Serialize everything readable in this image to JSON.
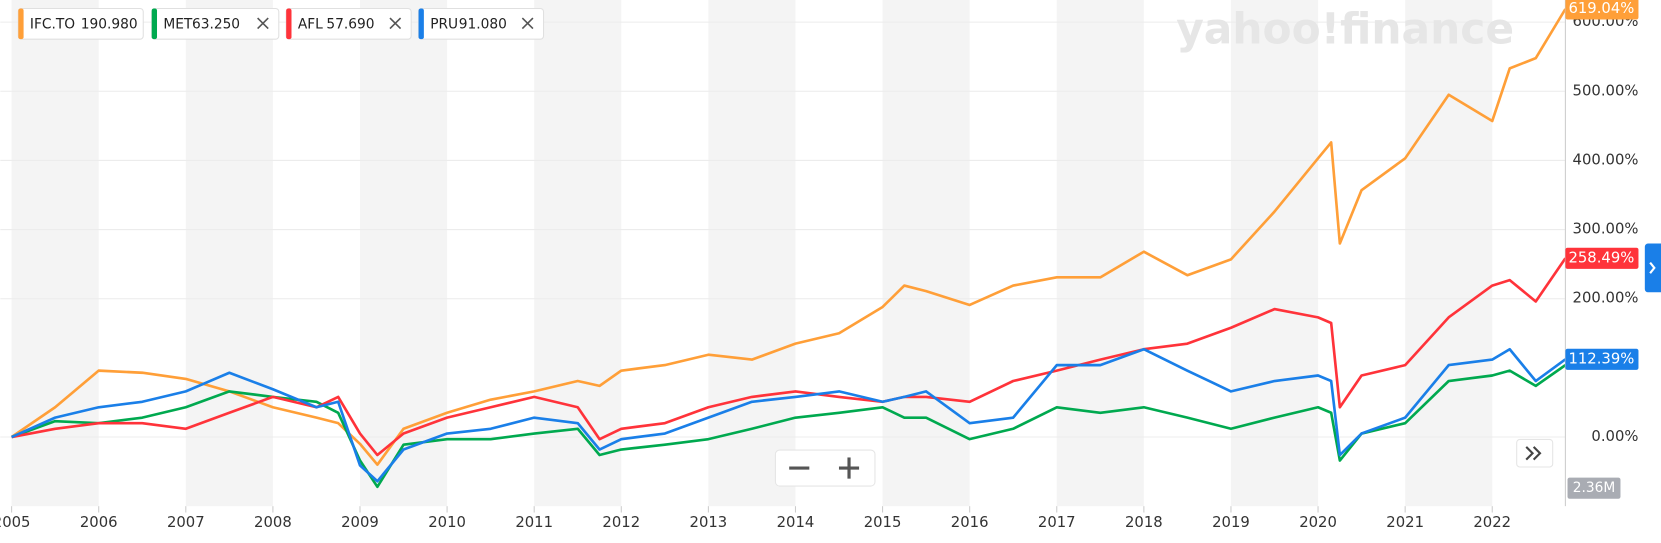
{
  "chart_data": {
    "type": "line",
    "watermark": "yahoo!finance",
    "volume_label": "2.36M",
    "x": [
      2005.0,
      2005.5,
      2006.0,
      2006.5,
      2007.0,
      2007.5,
      2008.0,
      2008.5,
      2008.75,
      2009.0,
      2009.2,
      2009.5,
      2010.0,
      2010.5,
      2011.0,
      2011.5,
      2011.75,
      2012.0,
      2012.5,
      2013.0,
      2013.5,
      2014.0,
      2014.5,
      2015.0,
      2015.25,
      2015.5,
      2016.0,
      2016.5,
      2017.0,
      2017.5,
      2018.0,
      2018.5,
      2019.0,
      2019.5,
      2020.0,
      2020.15,
      2020.25,
      2020.5,
      2021.0,
      2021.5,
      2022.0,
      2022.2,
      2022.5,
      2022.84
    ],
    "series": [
      {
        "name": "IFC.TO",
        "price": "190.980",
        "color": "#ff9f38",
        "values": [
          0,
          43,
          96,
          93,
          84,
          66,
          43,
          28,
          20,
          -10,
          -40,
          12,
          35,
          54,
          66,
          81,
          74,
          96,
          104,
          119,
          112,
          135,
          150,
          188,
          219,
          211,
          191,
          219,
          231,
          231,
          268,
          234,
          257,
          326,
          403,
          426,
          280,
          357,
          403,
          495,
          457,
          533,
          548,
          619.04
        ],
        "value_labels": [
          null,
          null,
          null,
          null,
          null,
          null,
          null,
          null,
          null,
          null,
          null,
          null,
          null,
          null,
          null,
          null,
          null,
          null,
          null,
          null,
          null,
          null,
          null,
          null,
          null,
          null,
          null,
          null,
          null,
          null,
          null,
          null,
          null,
          null,
          null,
          null,
          null,
          null,
          null,
          null,
          null,
          null,
          null,
          "619.04%"
        ]
      },
      {
        "name": "MET",
        "price": "63.250",
        "color": "#00a94f",
        "values": [
          0,
          23,
          20,
          28,
          43,
          66,
          58,
          51,
          35,
          -34,
          -72,
          -11,
          -3,
          -3,
          5,
          12,
          -26,
          -18,
          -11,
          -3,
          12,
          28,
          35,
          43,
          28,
          28,
          -3,
          12,
          43,
          35,
          43,
          28,
          12,
          28,
          43,
          35,
          -34,
          5,
          20,
          81,
          89,
          96,
          74,
          104
        ]
      },
      {
        "name": "AFL",
        "price": "57.690",
        "color": "#ff333a",
        "values": [
          0,
          12,
          20,
          20,
          12,
          35,
          58,
          43,
          58,
          5,
          -26,
          5,
          28,
          43,
          58,
          43,
          -3,
          12,
          20,
          43,
          58,
          66,
          58,
          51,
          58,
          58,
          51,
          81,
          96,
          112,
          127,
          135,
          158,
          185,
          173,
          165,
          43,
          89,
          104,
          173,
          219,
          227,
          196,
          258.49
        ],
        "value_labels": [
          null,
          null,
          null,
          null,
          null,
          null,
          null,
          null,
          null,
          null,
          null,
          null,
          null,
          null,
          null,
          null,
          null,
          null,
          null,
          null,
          null,
          null,
          null,
          null,
          null,
          null,
          null,
          null,
          null,
          null,
          null,
          null,
          null,
          null,
          null,
          null,
          null,
          null,
          null,
          null,
          null,
          null,
          null,
          "258.49%"
        ]
      },
      {
        "name": "PRU",
        "price": "91.080",
        "color": "#1a7fe8",
        "values": [
          0,
          28,
          43,
          51,
          66,
          93,
          69,
          43,
          51,
          -41,
          -64,
          -18,
          5,
          12,
          28,
          20,
          -18,
          -3,
          5,
          28,
          51,
          58,
          66,
          51,
          58,
          66,
          20,
          28,
          104,
          104,
          127,
          96,
          66,
          81,
          89,
          81,
          -26,
          5,
          28,
          104,
          112,
          127,
          81,
          112.39
        ],
        "value_labels": [
          null,
          null,
          null,
          null,
          null,
          null,
          null,
          null,
          null,
          null,
          null,
          null,
          null,
          null,
          null,
          null,
          null,
          null,
          null,
          null,
          null,
          null,
          null,
          null,
          null,
          null,
          null,
          null,
          null,
          null,
          null,
          null,
          null,
          null,
          null,
          null,
          null,
          null,
          null,
          null,
          null,
          null,
          null,
          "112.39%"
        ]
      }
    ],
    "xlim": [
      2004.87,
      2022.84
    ],
    "xticks": [
      2005,
      2006,
      2007,
      2008,
      2009,
      2010,
      2011,
      2012,
      2013,
      2014,
      2015,
      2016,
      2017,
      2018,
      2019,
      2020,
      2021,
      2022
    ],
    "ylim": [
      -100,
      632
    ],
    "yticks": [
      {
        "value": 0,
        "label": "0.00%"
      },
      {
        "value": 200,
        "label": "200.00%"
      },
      {
        "value": 300,
        "label": "300.00%"
      },
      {
        "value": 400,
        "label": "400.00%"
      },
      {
        "value": 500,
        "label": "500.00%"
      },
      {
        "value": 600,
        "label": "600.00%"
      }
    ],
    "grid": true
  }
}
